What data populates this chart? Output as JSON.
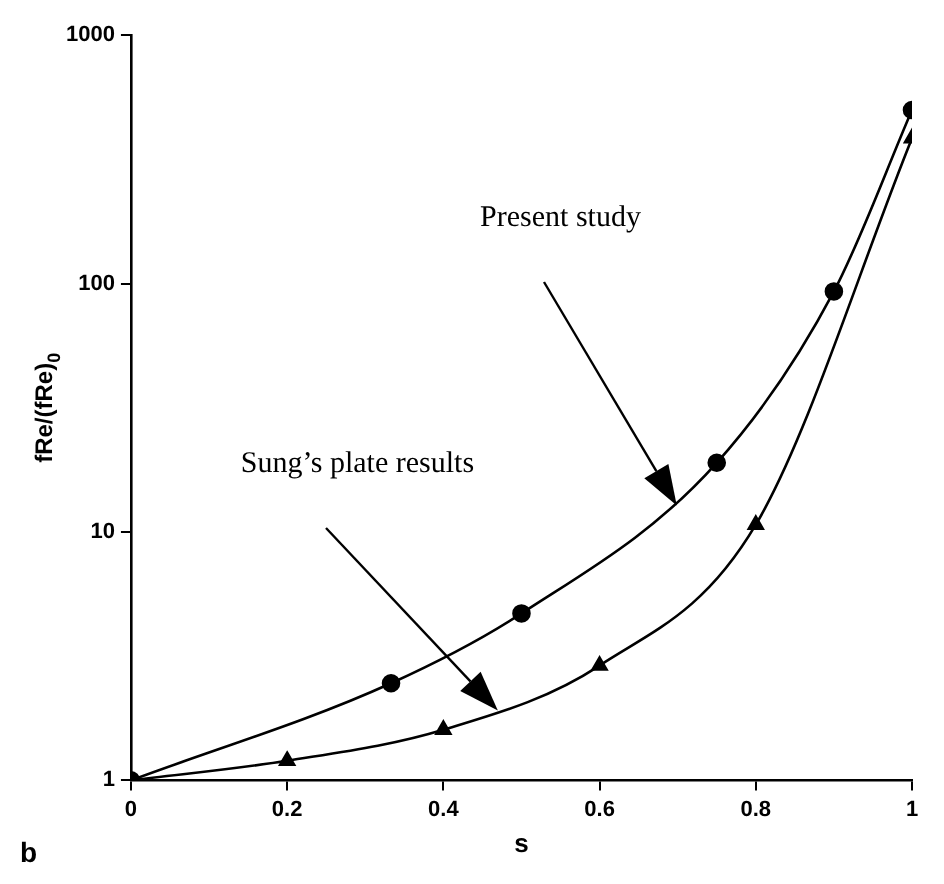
{
  "chart_data": {
    "type": "line",
    "xlabel": "s",
    "ylabel": "fRe/(fRe)$_{0}$",
    "x": [
      0,
      0.333,
      0.5,
      0.75,
      0.9,
      1
    ],
    "series": [
      {
        "color": "#000000",
        "marker": "circle",
        "values": [
          1,
          2.46,
          4.7,
          19,
          93,
          500
        ]
      },
      {
        "color": "#000000",
        "marker": "triangle",
        "x": [
          0,
          0.2,
          0.4,
          0.6,
          0.8,
          1
        ],
        "values": [
          1,
          1.2,
          1.6,
          2.9,
          10.7,
          385
        ]
      }
    ],
    "xlim": [
      0,
      1
    ],
    "xticks": [
      0,
      0.2,
      0.4,
      0.6,
      0.8,
      1
    ],
    "ylim": [
      1,
      1000
    ],
    "yticks": [
      1,
      10,
      100,
      1000
    ],
    "log": "y",
    "grid": false,
    "legend": false,
    "annotations": [
      "Present study",
      "Sung’s plate results",
      "b"
    ]
  }
}
